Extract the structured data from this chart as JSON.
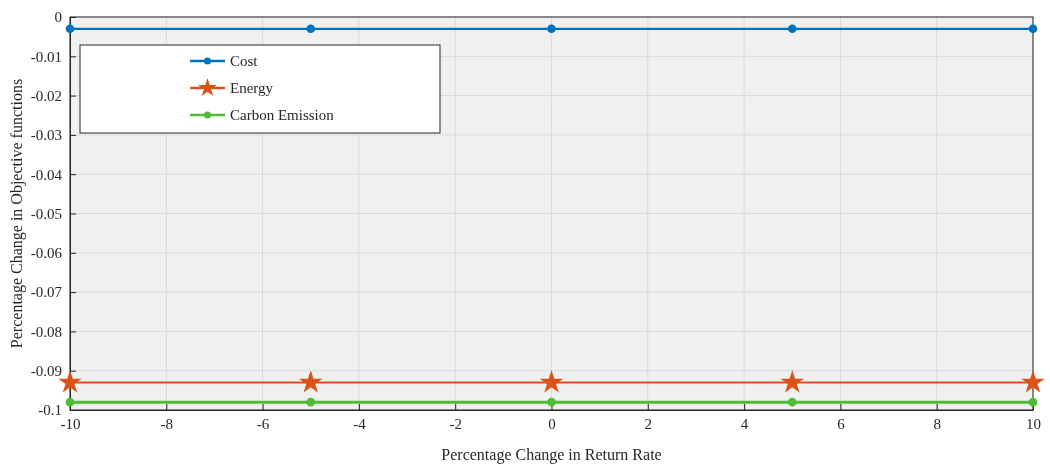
{
  "chart_data": {
    "type": "line",
    "xlabel": "Percentage Change in Return Rate",
    "ylabel": "Percentage Change in Objective functions",
    "x": [
      -10,
      -5,
      0,
      5,
      10
    ],
    "series": [
      {
        "name": "Cost",
        "color": "#0072bd",
        "values": [
          -0.003,
          -0.003,
          -0.003,
          -0.003,
          -0.003
        ],
        "marker": "circle"
      },
      {
        "name": "Energy",
        "color": "#d95319",
        "values": [
          -0.093,
          -0.093,
          -0.093,
          -0.093,
          -0.093
        ],
        "marker": "star"
      },
      {
        "name": "Carbon Emission",
        "color": "#4dbd33",
        "values": [
          -0.098,
          -0.098,
          -0.098,
          -0.098,
          -0.098
        ],
        "marker": "circle"
      }
    ],
    "xlim": [
      -10,
      10
    ],
    "xticks": [
      -10,
      -8,
      -6,
      -4,
      -2,
      0,
      2,
      4,
      6,
      8,
      10
    ],
    "ylim": [
      -0.1,
      0
    ],
    "yticks": [
      -0.1,
      -0.09,
      -0.08,
      -0.07,
      -0.06,
      -0.05,
      -0.04,
      -0.03,
      -0.02,
      -0.01,
      0
    ],
    "grid": true,
    "legend": "top left",
    "line_style": "solid"
  }
}
